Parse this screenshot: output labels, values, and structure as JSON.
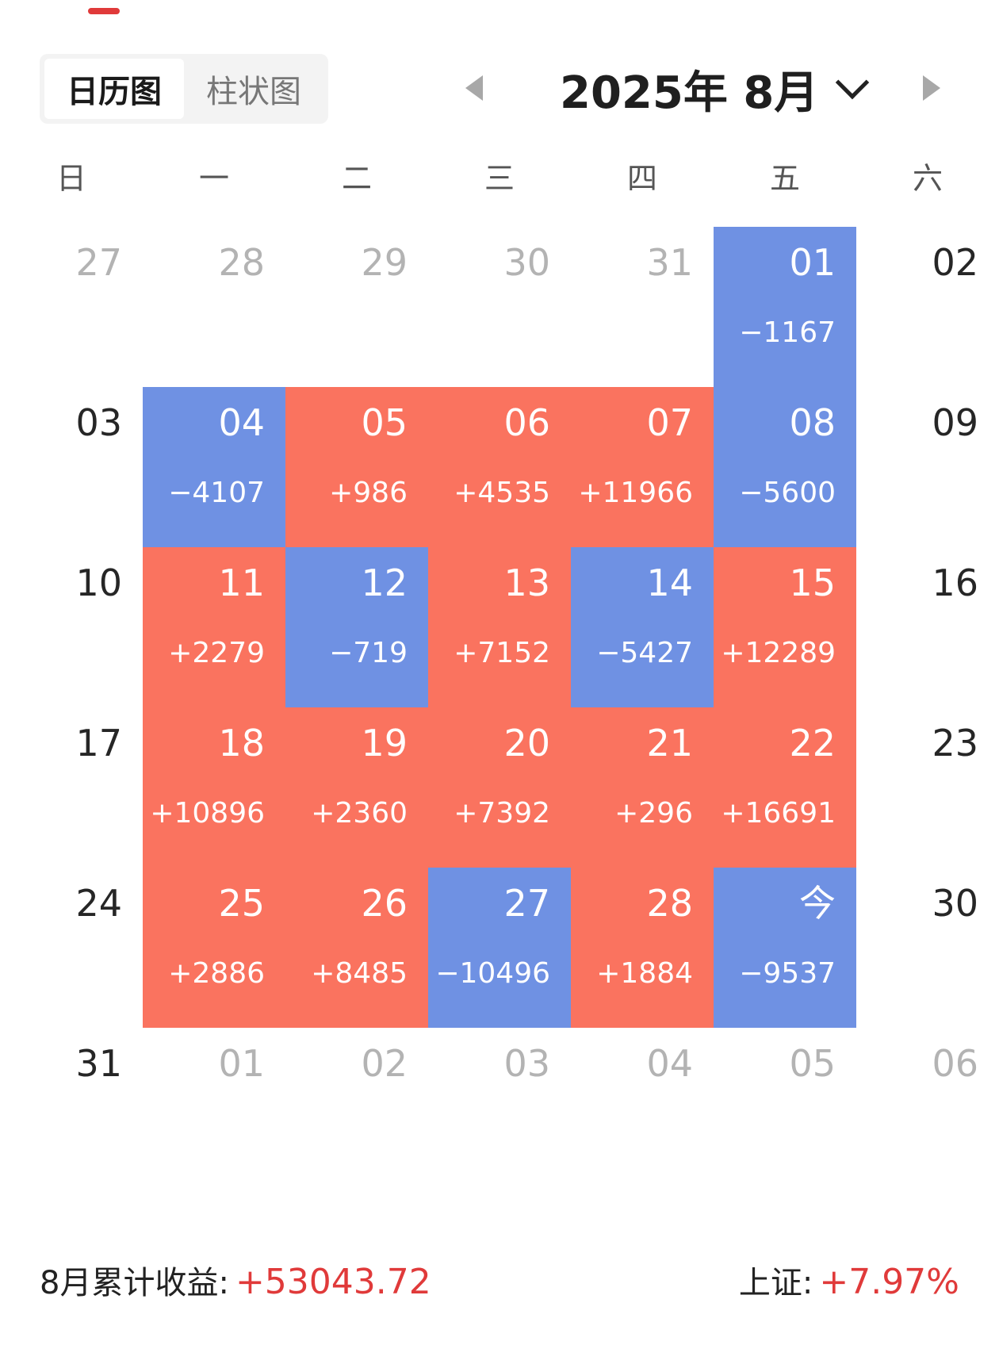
{
  "view_tabs": [
    {
      "label": "日历图",
      "active": true
    },
    {
      "label": "柱状图",
      "active": false
    }
  ],
  "month_title": "2025年 8月",
  "weekdays": [
    "日",
    "一",
    "二",
    "三",
    "四",
    "五",
    "六"
  ],
  "colors": {
    "up": "#fa735f",
    "down": "#6f91e3",
    "accent": "#e03a3a"
  },
  "calendar": {
    "weeks": [
      [
        {
          "day": "27",
          "pnl": "",
          "type": "other"
        },
        {
          "day": "28",
          "pnl": "",
          "type": "other"
        },
        {
          "day": "29",
          "pnl": "",
          "type": "other"
        },
        {
          "day": "30",
          "pnl": "",
          "type": "other"
        },
        {
          "day": "31",
          "pnl": "",
          "type": "other"
        },
        {
          "day": "01",
          "pnl": "−1167",
          "type": "down"
        },
        {
          "day": "02",
          "pnl": "",
          "type": "plain"
        }
      ],
      [
        {
          "day": "03",
          "pnl": "",
          "type": "plain"
        },
        {
          "day": "04",
          "pnl": "−4107",
          "type": "down"
        },
        {
          "day": "05",
          "pnl": "+986",
          "type": "up"
        },
        {
          "day": "06",
          "pnl": "+4535",
          "type": "up"
        },
        {
          "day": "07",
          "pnl": "+11966",
          "type": "up"
        },
        {
          "day": "08",
          "pnl": "−5600",
          "type": "down"
        },
        {
          "day": "09",
          "pnl": "",
          "type": "plain"
        }
      ],
      [
        {
          "day": "10",
          "pnl": "",
          "type": "plain"
        },
        {
          "day": "11",
          "pnl": "+2279",
          "type": "up"
        },
        {
          "day": "12",
          "pnl": "−719",
          "type": "down"
        },
        {
          "day": "13",
          "pnl": "+7152",
          "type": "up"
        },
        {
          "day": "14",
          "pnl": "−5427",
          "type": "down"
        },
        {
          "day": "15",
          "pnl": "+12289",
          "type": "up"
        },
        {
          "day": "16",
          "pnl": "",
          "type": "plain"
        }
      ],
      [
        {
          "day": "17",
          "pnl": "",
          "type": "plain"
        },
        {
          "day": "18",
          "pnl": "+10896",
          "type": "up"
        },
        {
          "day": "19",
          "pnl": "+2360",
          "type": "up"
        },
        {
          "day": "20",
          "pnl": "+7392",
          "type": "up"
        },
        {
          "day": "21",
          "pnl": "+296",
          "type": "up"
        },
        {
          "day": "22",
          "pnl": "+16691",
          "type": "up"
        },
        {
          "day": "23",
          "pnl": "",
          "type": "plain"
        }
      ],
      [
        {
          "day": "24",
          "pnl": "",
          "type": "plain"
        },
        {
          "day": "25",
          "pnl": "+2886",
          "type": "up"
        },
        {
          "day": "26",
          "pnl": "+8485",
          "type": "up"
        },
        {
          "day": "27",
          "pnl": "−10496",
          "type": "down"
        },
        {
          "day": "28",
          "pnl": "+1884",
          "type": "up"
        },
        {
          "day": "今",
          "pnl": "−9537",
          "type": "down"
        },
        {
          "day": "30",
          "pnl": "",
          "type": "plain"
        }
      ],
      [
        {
          "day": "31",
          "pnl": "",
          "type": "plain"
        },
        {
          "day": "01",
          "pnl": "",
          "type": "other"
        },
        {
          "day": "02",
          "pnl": "",
          "type": "other"
        },
        {
          "day": "03",
          "pnl": "",
          "type": "other"
        },
        {
          "day": "04",
          "pnl": "",
          "type": "other"
        },
        {
          "day": "05",
          "pnl": "",
          "type": "other"
        },
        {
          "day": "06",
          "pnl": "",
          "type": "other"
        }
      ]
    ]
  },
  "summary": {
    "month_label": "8月累计收益:",
    "month_value": "+53043.72",
    "index_label": "上证:",
    "index_value": "+7.97%"
  }
}
